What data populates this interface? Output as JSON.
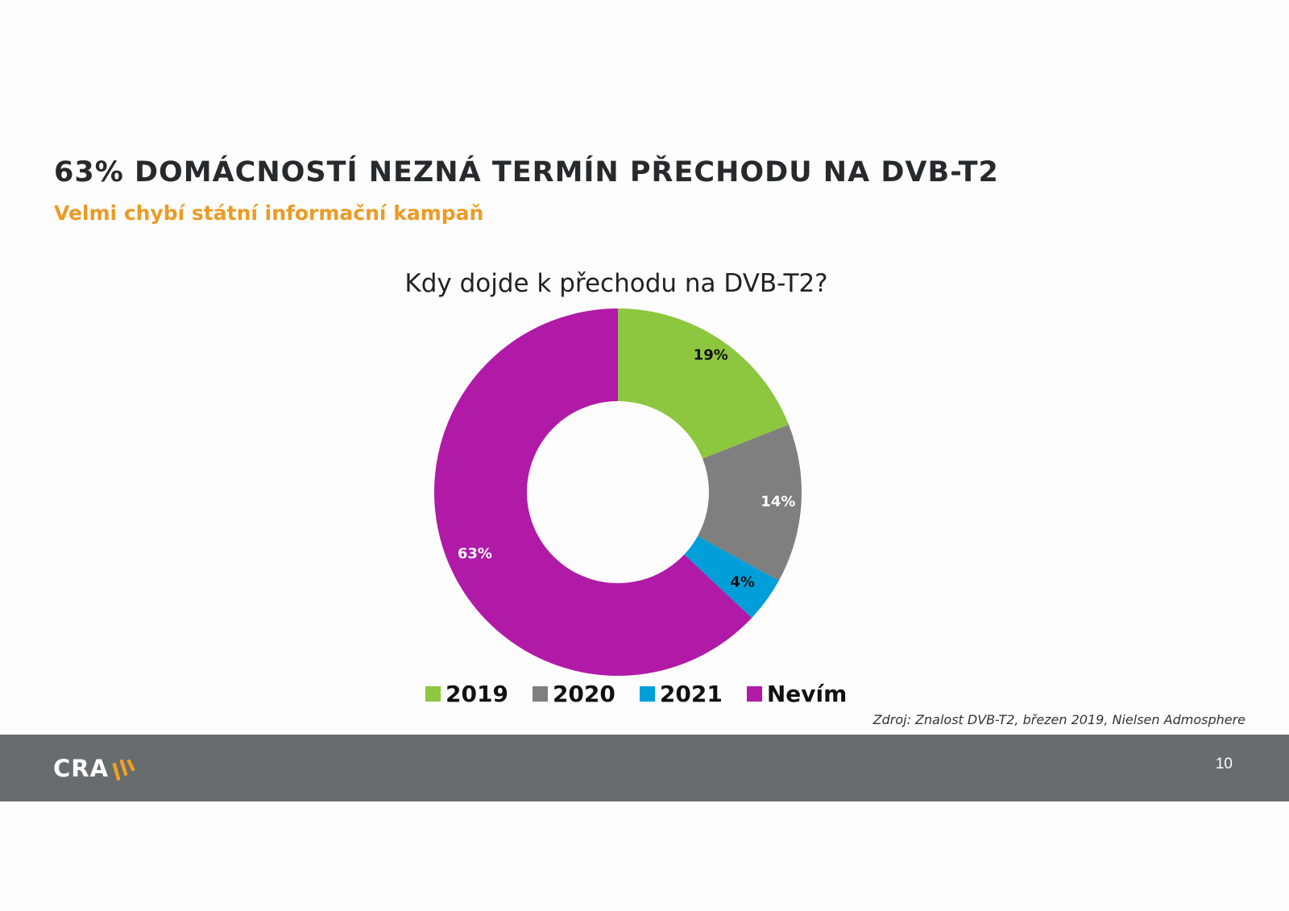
{
  "slide": {
    "title": "63% DOMÁCNOSTÍ NEZNÁ TERMÍN PŘECHODU NA DVB-T2",
    "subtitle": "Velmi chybí státní informační kampaň",
    "source_note": "Zdroj: Znalost DVB-T2, březen 2019, Nielsen Admosphere",
    "page_number": "10",
    "logo_text": "CRA",
    "colors": {
      "title": "#262a2d",
      "subtitle": "#eb9b25",
      "footer": "#676c6e",
      "logo_accent": "#f0a020"
    }
  },
  "chart_data": {
    "type": "pie",
    "variant": "donut",
    "title": "Kdy dojde k přechodu na DVB-T2?",
    "categories": [
      "2019",
      "2020",
      "2021",
      "Nevím"
    ],
    "values": [
      19,
      14,
      4,
      63
    ],
    "unit": "%",
    "labels": [
      "19%",
      "14%",
      "4%",
      "63%"
    ],
    "colors": [
      "#8dc63f",
      "#7f7f7f",
      "#009fda",
      "#b01aa7"
    ],
    "label_colors": [
      "#111111",
      "#ffffff",
      "#111111",
      "#ffffff"
    ],
    "start_angle_deg": 0,
    "direction": "clockwise",
    "legend_position": "bottom"
  }
}
